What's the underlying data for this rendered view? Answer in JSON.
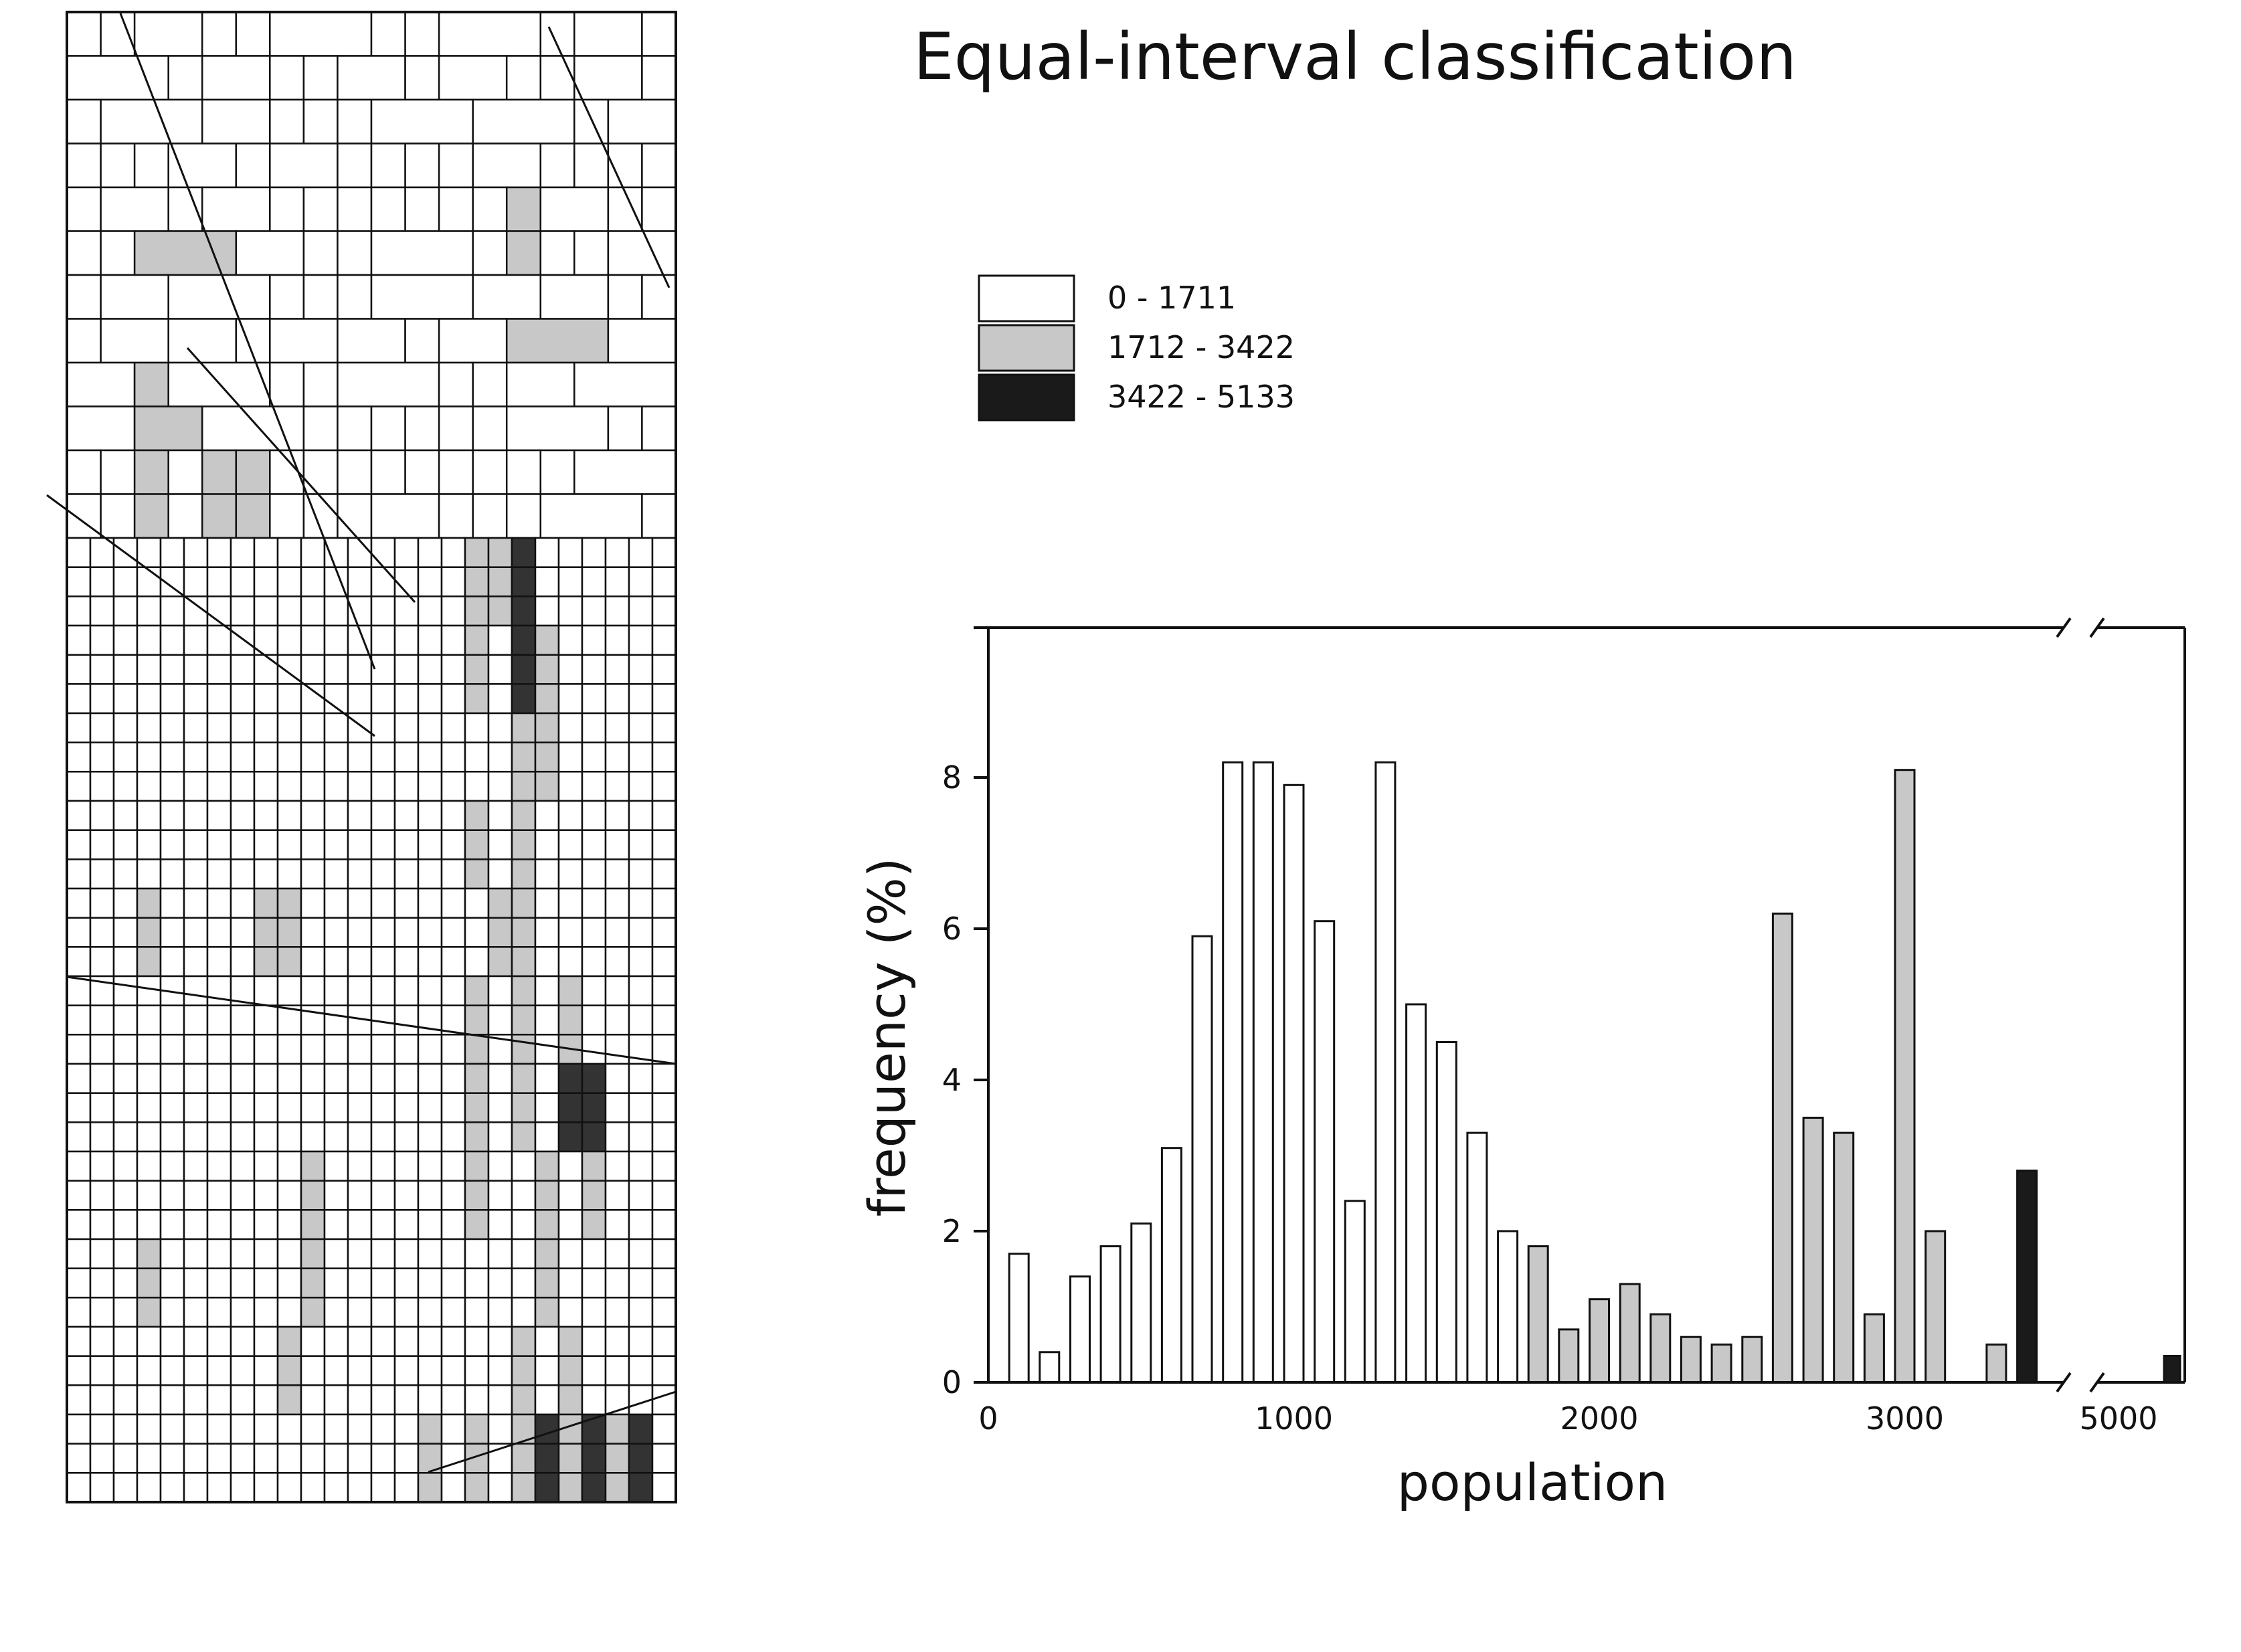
{
  "chart_data": {
    "type": "bar",
    "title": "Equal-interval classification",
    "xlabel": "population",
    "ylabel": "frequency (%)",
    "ylim": [
      0,
      10
    ],
    "y_ticks": [
      "0",
      "2",
      "4",
      "6",
      "8"
    ],
    "x_ticks": [
      "0",
      "1000",
      "2000",
      "3000",
      "5000"
    ],
    "x_axis_break": true,
    "grid": false,
    "legend_position": "top-left",
    "classes": [
      {
        "label": "0 - 1711",
        "color": "#ffffff"
      },
      {
        "label": "1712 - 3422",
        "color": "#c8c8c8"
      },
      {
        "label": "3422 - 5133",
        "color": "#1a1a1a"
      }
    ],
    "bars": [
      {
        "x": 100,
        "y": 1.7,
        "class": 0
      },
      {
        "x": 200,
        "y": 0.4,
        "class": 0
      },
      {
        "x": 300,
        "y": 1.4,
        "class": 0
      },
      {
        "x": 400,
        "y": 1.8,
        "class": 0
      },
      {
        "x": 500,
        "y": 2.1,
        "class": 0
      },
      {
        "x": 600,
        "y": 3.1,
        "class": 0
      },
      {
        "x": 700,
        "y": 5.9,
        "class": 0
      },
      {
        "x": 800,
        "y": 8.2,
        "class": 0
      },
      {
        "x": 900,
        "y": 8.2,
        "class": 0
      },
      {
        "x": 1000,
        "y": 7.9,
        "class": 0
      },
      {
        "x": 1100,
        "y": 6.1,
        "class": 0
      },
      {
        "x": 1200,
        "y": 2.4,
        "class": 0
      },
      {
        "x": 1300,
        "y": 8.2,
        "class": 0
      },
      {
        "x": 1400,
        "y": 5.0,
        "class": 0
      },
      {
        "x": 1500,
        "y": 4.5,
        "class": 0
      },
      {
        "x": 1600,
        "y": 3.3,
        "class": 0
      },
      {
        "x": 1700,
        "y": 2.0,
        "class": 0
      },
      {
        "x": 1800,
        "y": 1.8,
        "class": 1
      },
      {
        "x": 1900,
        "y": 0.7,
        "class": 1
      },
      {
        "x": 2000,
        "y": 1.1,
        "class": 1
      },
      {
        "x": 2100,
        "y": 1.3,
        "class": 1
      },
      {
        "x": 2200,
        "y": 0.9,
        "class": 1
      },
      {
        "x": 2300,
        "y": 0.6,
        "class": 1
      },
      {
        "x": 2400,
        "y": 0.5,
        "class": 1
      },
      {
        "x": 2500,
        "y": 0.6,
        "class": 1
      },
      {
        "x": 2600,
        "y": 6.2,
        "class": 1
      },
      {
        "x": 2700,
        "y": 3.5,
        "class": 1
      },
      {
        "x": 2800,
        "y": 3.3,
        "class": 1
      },
      {
        "x": 2900,
        "y": 0.9,
        "class": 1
      },
      {
        "x": 3000,
        "y": 8.1,
        "class": 1
      },
      {
        "x": 3100,
        "y": 2.0,
        "class": 1
      },
      {
        "x": 3300,
        "y": 0.5,
        "class": 1
      },
      {
        "x": 3400,
        "y": 2.8,
        "class": 2
      },
      {
        "x": 5100,
        "y": 0.35,
        "class": 2
      }
    ]
  }
}
